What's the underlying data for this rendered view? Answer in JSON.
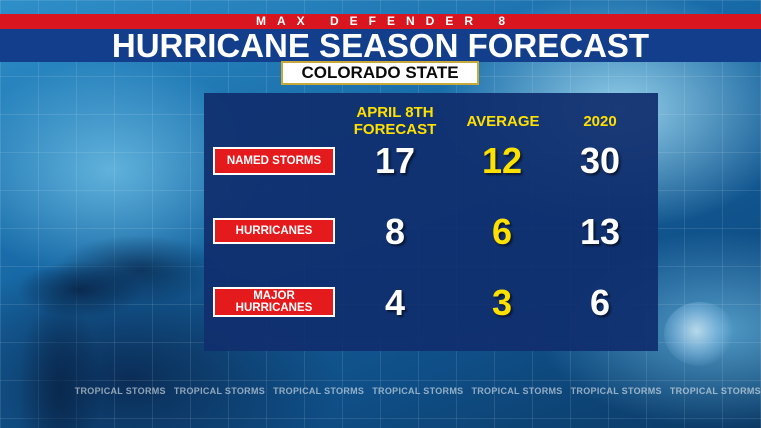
{
  "header": {
    "brand": "MAX DEFENDER 8",
    "title": "HURRICANE SEASON FORECAST",
    "subtitle": "COLORADO STATE"
  },
  "table": {
    "columns": [
      "APRIL 8TH\nFORECAST",
      "AVERAGE",
      "2020"
    ],
    "rows": [
      {
        "label": "NAMED STORMS",
        "values": [
          "17",
          "12",
          "30"
        ]
      },
      {
        "label": "HURRICANES",
        "values": [
          "8",
          "6",
          "13"
        ]
      },
      {
        "label": "MAJOR\nHURRICANES",
        "values": [
          "4",
          "3",
          "6"
        ]
      }
    ]
  },
  "ticker": {
    "items": [
      "TROPICAL STORMS",
      "TROPICAL STORMS",
      "TROPICAL STORMS",
      "TROPICAL STORMS",
      "TROPICAL STORMS",
      "TROPICAL STORMS",
      "TROPICAL STORMS"
    ]
  },
  "colors": {
    "brand_bar": "#d9161f",
    "title_bar": "#123e8c",
    "panel": "#102e6e",
    "label_box": "#e41a1c",
    "highlight": "#ffe100"
  }
}
